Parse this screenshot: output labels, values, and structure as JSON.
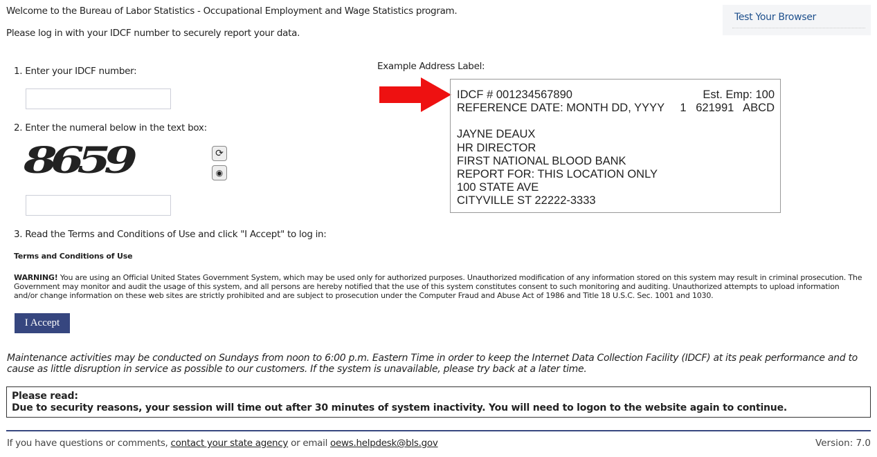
{
  "header": {
    "welcome": "Welcome to the Bureau of Labor Statistics - Occupational Employment and Wage Statistics program.",
    "instruction": "Please log in with your IDCF number to securely report your data.",
    "test_browser": "Test Your Browser"
  },
  "steps": {
    "step1": "1. Enter your IDCF number:",
    "step2": "2. Enter the numeral below in the text box:",
    "captcha_text": "8659",
    "step3": "3. Read the Terms and Conditions of Use and click \"I Accept\" to log in:"
  },
  "terms": {
    "title": "Terms and Conditions of Use",
    "warning_label": "WARNING!",
    "warning_text": " You are using an Official United States Government System, which may be used only for authorized purposes. Unauthorized modification of any information stored on this system may result in criminal prosecution. The Government may monitor and audit the usage of this system, and all persons are hereby notified that the use of this system constitutes consent to such monitoring and auditing. Unauthorized attempts to upload information and/or change information on these web sites are strictly prohibited and are subject to prosecution under the Computer Fraud and Abuse Act of 1986 and Title 18 U.S.C. Sec. 1001 and 1030.",
    "accept": "I Accept"
  },
  "example": {
    "caption": "Example Address Label:",
    "idcf": "IDCF # 001234567890",
    "emp": "Est. Emp: 100",
    "ref": "REFERENCE DATE: MONTH DD, YYYY",
    "ref_codes": "1   621991   ABCD",
    "lines": [
      "JAYNE DEAUX",
      "HR DIRECTOR",
      "FIRST NATIONAL BLOOD BANK",
      "REPORT FOR: THIS LOCATION ONLY",
      "100 STATE AVE",
      "CITYVILLE ST 22222-3333"
    ]
  },
  "maintenance": "Maintenance activities may be conducted on Sundays from noon to 6:00 p.m. Eastern Time in order to keep the Internet Data Collection Facility (IDCF) at its peak performance and to cause as little disruption in service as possible to our customers. If the system is unavailable, please try back at a later time.",
  "notice": {
    "title": "Please read:",
    "text": "Due to security reasons, your session will time out after 30 minutes of system inactivity. You will need to logon to the website again to continue."
  },
  "footer": {
    "pre": "If you have questions or comments, ",
    "link1": "contact your state agency",
    "mid": " or email ",
    "link2": "oews.helpdesk@bls.gov",
    "version": "Version: 7.0"
  },
  "colors": {
    "button": "#36467f",
    "arrow": "#ee1111",
    "link": "#1d4f8c"
  }
}
